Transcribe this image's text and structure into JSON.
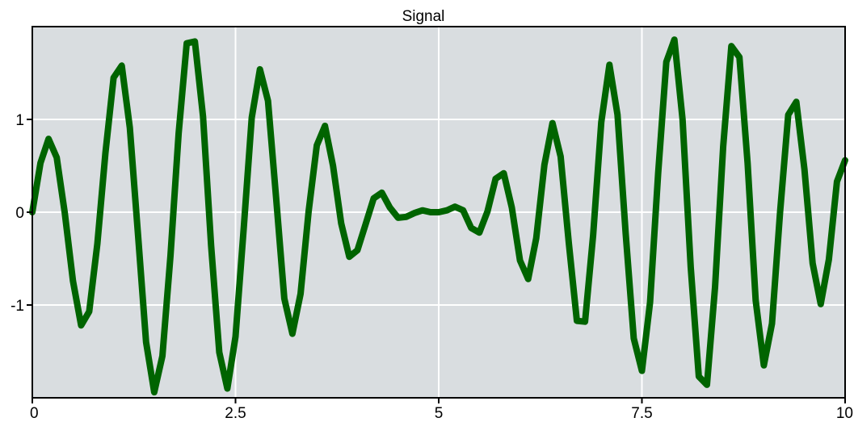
{
  "chart_data": {
    "type": "line",
    "title": "Signal",
    "xlabel": "",
    "ylabel": "",
    "xlim": [
      0,
      10
    ],
    "ylim": [
      -2,
      2
    ],
    "x_ticks": [
      0,
      2.5,
      5,
      7.5,
      10
    ],
    "x_tick_labels": [
      "0",
      "2.5",
      "5",
      "7.5",
      "10"
    ],
    "y_ticks": [
      1,
      0,
      -1
    ],
    "y_tick_labels": [
      "1",
      "0",
      "-1"
    ],
    "grid": true,
    "legend": "none",
    "series": [
      {
        "color": "#006400",
        "formula": "2*sin(0.1*pi*x)*sin(10*x) (approx.)",
        "x": [
          0.0,
          0.1,
          0.2,
          0.3,
          0.4,
          0.5,
          0.6,
          0.7,
          0.8,
          0.9,
          1.0,
          1.1,
          1.2,
          1.3,
          1.4,
          1.5,
          1.6,
          1.7,
          1.8,
          1.9,
          2.0,
          2.1,
          2.2,
          2.3,
          2.4,
          2.5,
          2.6,
          2.7,
          2.8,
          2.9,
          3.0,
          3.1,
          3.2,
          3.3,
          3.4,
          3.5,
          3.6,
          3.7,
          3.8,
          3.9,
          4.0,
          4.1,
          4.2,
          4.3,
          4.4,
          4.5,
          4.6,
          4.7,
          4.8,
          4.9,
          5.0,
          5.1,
          5.2,
          5.3,
          5.4,
          5.5,
          5.6,
          5.7,
          5.8,
          5.9,
          6.0,
          6.1,
          6.2,
          6.3,
          6.4,
          6.5,
          6.6,
          6.7,
          6.8,
          6.9,
          7.0,
          7.1,
          7.2,
          7.3,
          7.4,
          7.5,
          7.6,
          7.7,
          7.8,
          7.9,
          8.0,
          8.1,
          8.2,
          8.3,
          8.4,
          8.5,
          8.6,
          8.7,
          8.8,
          8.9,
          9.0,
          9.1,
          9.2,
          9.3,
          9.4,
          9.5,
          9.6,
          9.7,
          9.8,
          9.9,
          10.0
        ],
        "y": [
          0.0,
          0.53,
          0.79,
          0.59,
          -0.01,
          -0.74,
          -1.22,
          -1.07,
          -0.34,
          0.64,
          1.45,
          1.58,
          0.91,
          -0.24,
          -1.4,
          -1.94,
          -1.55,
          -0.47,
          0.85,
          1.82,
          1.84,
          1.03,
          -0.36,
          -1.51,
          -1.9,
          -1.34,
          -0.18,
          1.02,
          1.54,
          1.2,
          0.15,
          -0.93,
          -1.31,
          -0.88,
          0.01,
          0.72,
          0.93,
          0.5,
          -0.12,
          -0.48,
          -0.41,
          -0.13,
          0.15,
          0.21,
          0.05,
          -0.06,
          -0.05,
          -0.01,
          0.02,
          0.0,
          0.0,
          0.02,
          0.06,
          0.02,
          -0.17,
          -0.22,
          0.01,
          0.36,
          0.42,
          0.05,
          -0.52,
          -0.72,
          -0.28,
          0.51,
          0.96,
          0.6,
          -0.33,
          -1.17,
          -1.18,
          -0.25,
          0.97,
          1.59,
          1.05,
          -0.23,
          -1.36,
          -1.71,
          -0.97,
          0.42,
          1.62,
          1.86,
          1.0,
          -0.59,
          -1.77,
          -1.86,
          -0.81,
          0.71,
          1.79,
          1.67,
          0.53,
          -0.95,
          -1.65,
          -1.2,
          0.0,
          1.05,
          1.19,
          0.46,
          -0.55,
          -0.99,
          -0.51,
          0.33,
          0.56
        ]
      }
    ]
  }
}
